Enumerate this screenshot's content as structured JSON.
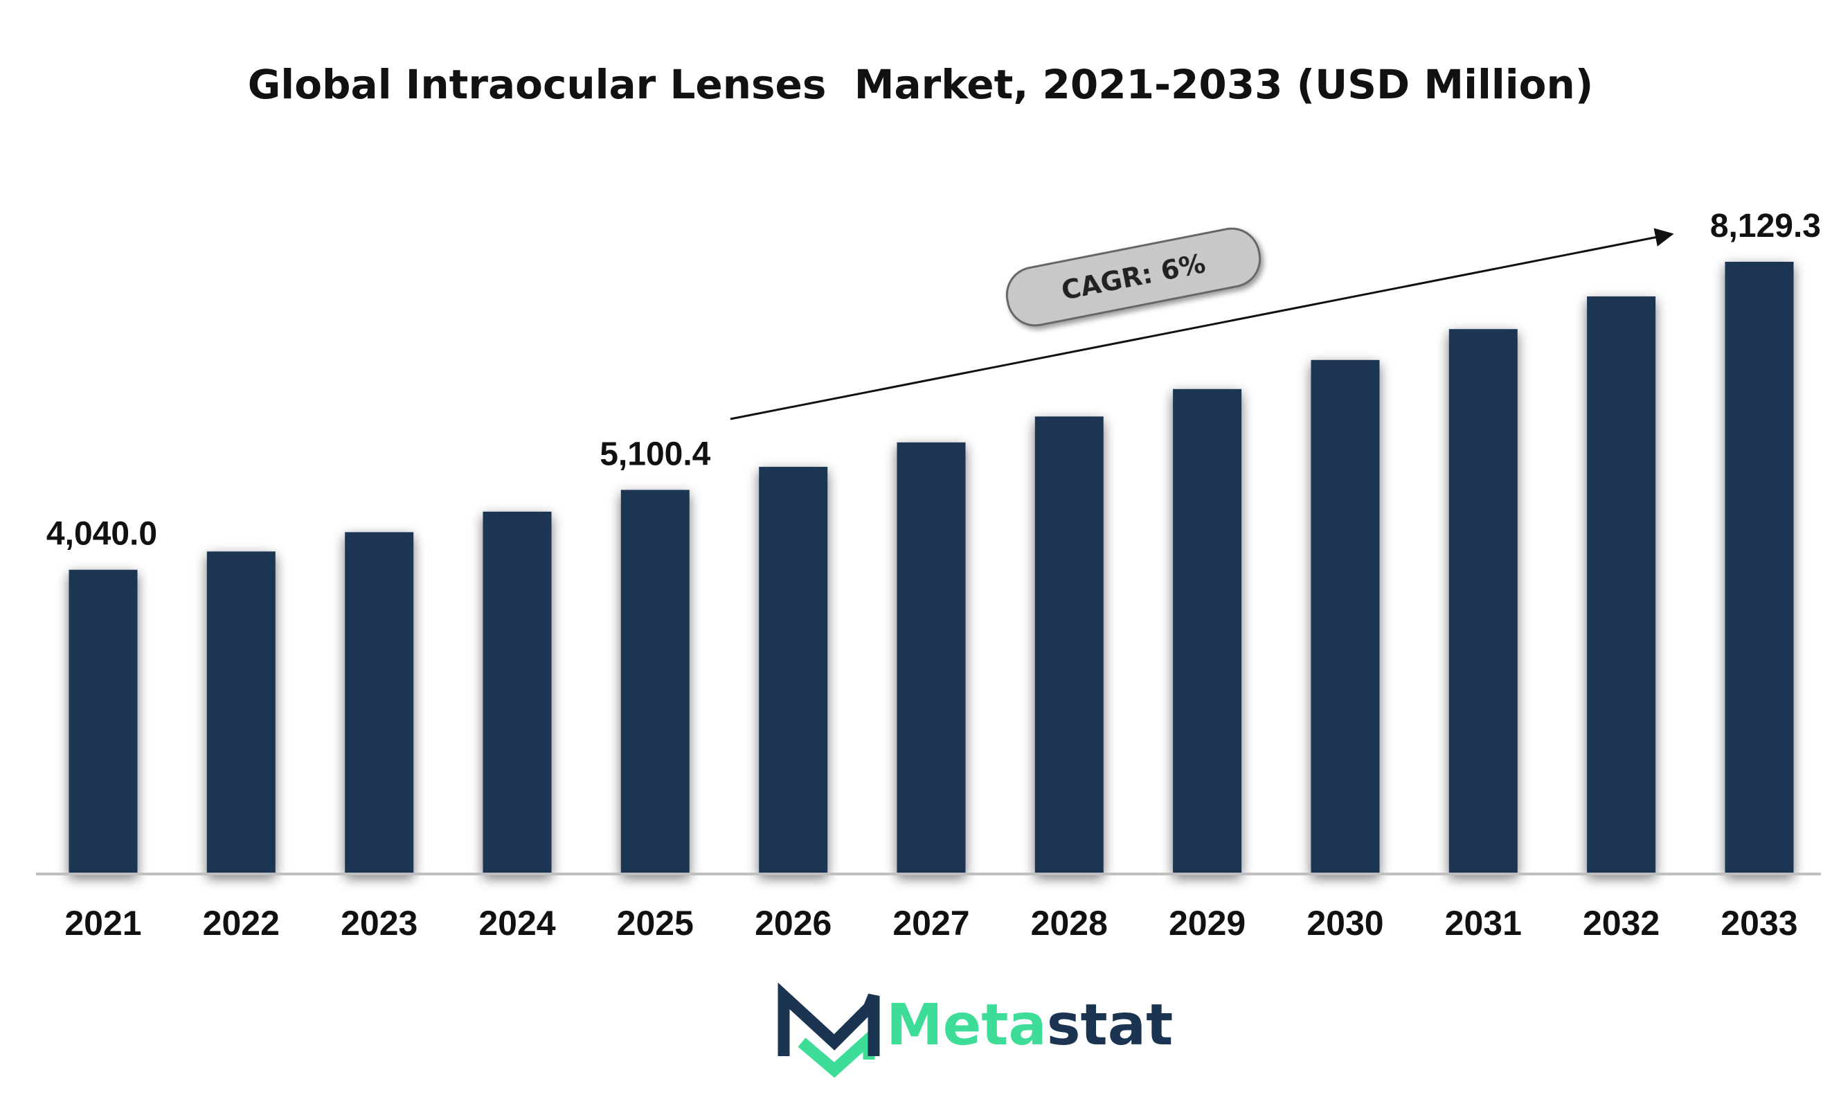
{
  "chart_data": {
    "type": "bar",
    "title": "Global Intraocular Lenses  Market, 2021-2033 (USD Million)",
    "xlabel": "",
    "ylabel": "",
    "categories": [
      "2021",
      "2022",
      "2023",
      "2024",
      "2025",
      "2026",
      "2027",
      "2028",
      "2029",
      "2030",
      "2031",
      "2032",
      "2033"
    ],
    "values": [
      4040.0,
      4282.4,
      4539.3,
      4811.7,
      5100.4,
      5406.4,
      5730.8,
      6074.7,
      6439.1,
      6825.5,
      7235.0,
      7669.1,
      8129.3
    ],
    "data_labels": [
      {
        "index": 0,
        "text": "4,040.0"
      },
      {
        "index": 4,
        "text": "5,100.4"
      },
      {
        "index": 12,
        "text": "8,129.3"
      }
    ],
    "ylim": [
      0,
      8129.3
    ],
    "grid": false,
    "legend": "none",
    "bar_color": "#1b3452",
    "annotation": {
      "text": "CAGR: 6%",
      "from_index": 5,
      "to_index": 12
    }
  },
  "logo": {
    "text_accent": "Meta",
    "text_main": "stat",
    "accent_color": "#3ddc97",
    "main_color": "#1b3452",
    "icon": "metastat-m-logo-icon"
  }
}
